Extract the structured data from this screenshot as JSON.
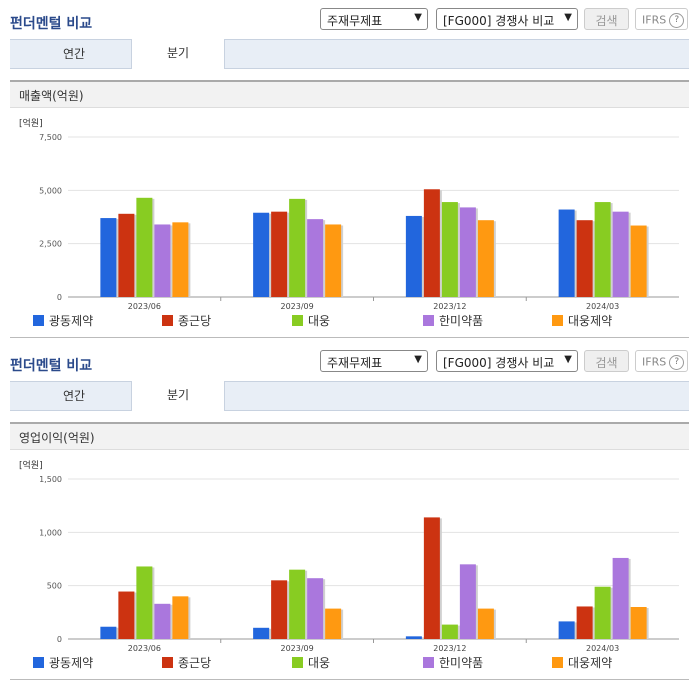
{
  "panels": [
    {
      "title": "펀더멘털 비교",
      "select_statement": "주재무제표",
      "select_compare": "[FG000] 경쟁사 비교",
      "search_label": "검색",
      "ifrs_label": "IFRS",
      "tabs": [
        {
          "label": "연간"
        },
        {
          "label": "분기"
        }
      ],
      "active_tab": 1,
      "metric_title": "매출액(억원)"
    },
    {
      "title": "펀더멘털 비교",
      "select_statement": "주재무제표",
      "select_compare": "[FG000] 경쟁사 비교",
      "search_label": "검색",
      "ifrs_label": "IFRS",
      "tabs": [
        {
          "label": "연간"
        },
        {
          "label": "분기"
        }
      ],
      "active_tab": 1,
      "metric_title": "영업이익(억원)"
    }
  ],
  "chart_data": [
    {
      "type": "bar",
      "unit_label": "[억원]",
      "categories": [
        "2023/06",
        "2023/09",
        "2023/12",
        "2024/03"
      ],
      "ylim": [
        0,
        7500
      ],
      "yticks": [
        0,
        2500,
        5000,
        7500
      ],
      "ytick_labels": [
        "0",
        "2,500",
        "5,000",
        "7,500"
      ],
      "grid": true,
      "legend_position": "bottom",
      "series": [
        {
          "name": "광동제약",
          "color": "#2266dd",
          "values": [
            3700,
            3950,
            3800,
            4100
          ]
        },
        {
          "name": "종근당",
          "color": "#cc3311",
          "values": [
            3900,
            4000,
            5050,
            3600
          ]
        },
        {
          "name": "대웅",
          "color": "#88cc22",
          "values": [
            4650,
            4600,
            4450,
            4450
          ]
        },
        {
          "name": "한미약품",
          "color": "#aa77dd",
          "values": [
            3400,
            3650,
            4200,
            4000
          ]
        },
        {
          "name": "대웅제약",
          "color": "#ff9911",
          "values": [
            3500,
            3400,
            3600,
            3350
          ]
        }
      ]
    },
    {
      "type": "bar",
      "unit_label": "[억원]",
      "categories": [
        "2023/06",
        "2023/09",
        "2023/12",
        "2024/03"
      ],
      "ylim": [
        0,
        1500
      ],
      "yticks": [
        0,
        500,
        1000,
        1500
      ],
      "ytick_labels": [
        "0",
        "500",
        "1,000",
        "1,500"
      ],
      "grid": true,
      "legend_position": "bottom",
      "series": [
        {
          "name": "광동제약",
          "color": "#2266dd",
          "values": [
            115,
            105,
            25,
            165
          ]
        },
        {
          "name": "종근당",
          "color": "#cc3311",
          "values": [
            445,
            550,
            1140,
            305
          ]
        },
        {
          "name": "대웅",
          "color": "#88cc22",
          "values": [
            680,
            650,
            135,
            490
          ]
        },
        {
          "name": "한미약품",
          "color": "#aa77dd",
          "values": [
            330,
            570,
            700,
            760
          ]
        },
        {
          "name": "대웅제약",
          "color": "#ff9911",
          "values": [
            400,
            285,
            285,
            300
          ]
        }
      ]
    }
  ]
}
